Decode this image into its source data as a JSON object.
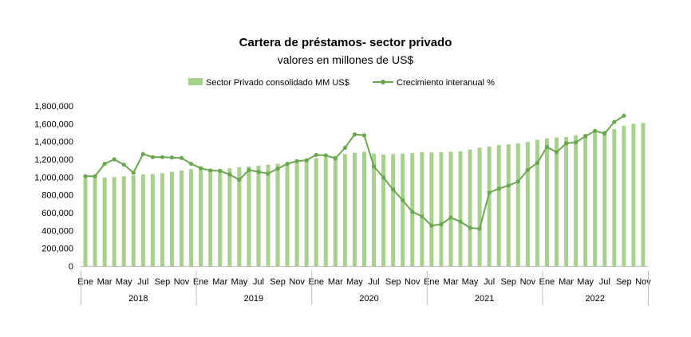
{
  "chart_data": {
    "type": "bar-line",
    "title": "Cartera de préstamos- sector privado",
    "subtitle": "valores en millones de US$",
    "legend": {
      "placement": "top",
      "entries": [
        "Sector Privado consolidado MM US$",
        "Crecimiento interanual %"
      ]
    },
    "y_axis": {
      "min": 0,
      "max": 1800000,
      "step": 200000,
      "tick_labels": [
        "0",
        "200,000",
        "400,000",
        "600,000",
        "800,000",
        "1,000,000",
        "1,200,000",
        "1,400,000",
        "1,600,000",
        "1,800,000"
      ]
    },
    "month_labels": [
      "Ene",
      "Mar",
      "May",
      "Jul",
      "Sep",
      "Nov"
    ],
    "years": [
      "2018",
      "2019",
      "2020",
      "2021",
      "2022"
    ],
    "grid": false,
    "series": [
      {
        "name": "Sector Privado consolidado MM US$",
        "type": "bar",
        "color": "#a9d18e",
        "values": [
          990000,
          1005000,
          995000,
          1000000,
          1010000,
          1020000,
          1030000,
          1035000,
          1045000,
          1060000,
          1075000,
          1090000,
          1100000,
          1095000,
          1090000,
          1100000,
          1110000,
          1120000,
          1130000,
          1140000,
          1150000,
          1165000,
          1180000,
          1195000,
          1215000,
          1225000,
          1240000,
          1260000,
          1275000,
          1285000,
          1265000,
          1255000,
          1260000,
          1265000,
          1270000,
          1280000,
          1278000,
          1280000,
          1285000,
          1290000,
          1310000,
          1330000,
          1345000,
          1360000,
          1370000,
          1380000,
          1395000,
          1420000,
          1435000,
          1445000,
          1450000,
          1470000,
          1485000,
          1500000,
          1520000,
          1540000,
          1575000,
          1600000,
          1610000
        ]
      },
      {
        "name": "Crecimiento interanual %",
        "type": "line",
        "color": "#6aa84f",
        "values": [
          1010000,
          1010000,
          1150000,
          1200000,
          1140000,
          1050000,
          1260000,
          1225000,
          1225000,
          1220000,
          1215000,
          1150000,
          1100000,
          1075000,
          1070000,
          1030000,
          970000,
          1080000,
          1060000,
          1040000,
          1095000,
          1150000,
          1180000,
          1190000,
          1250000,
          1245000,
          1210000,
          1330000,
          1480000,
          1470000,
          1120000,
          995000,
          860000,
          740000,
          610000,
          560000,
          455000,
          470000,
          545000,
          500000,
          430000,
          420000,
          825000,
          870000,
          905000,
          950000,
          1080000,
          1160000,
          1340000,
          1280000,
          1380000,
          1390000,
          1460000,
          1520000,
          1490000,
          1620000,
          1690000
        ]
      }
    ]
  }
}
